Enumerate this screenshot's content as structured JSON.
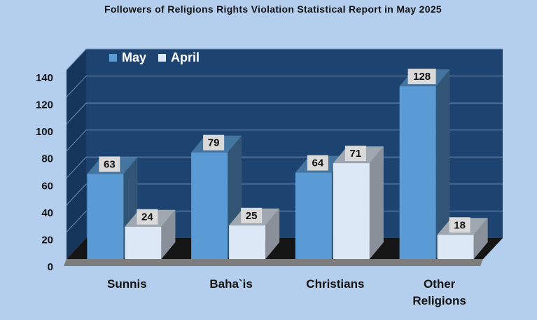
{
  "chart_data": {
    "type": "bar",
    "title": "Followers of Religions Rights Violation Statistical Report in May 2025",
    "categories": [
      "Sunnis",
      "Baha`is",
      "Christians",
      "Other Religions"
    ],
    "series": [
      {
        "name": "May",
        "values": [
          63,
          79,
          64,
          128
        ],
        "color": "#5b9bd5"
      },
      {
        "name": "April",
        "values": [
          24,
          25,
          71,
          18
        ],
        "color": "#dde8f6"
      }
    ],
    "yticks": [
      "0",
      "20",
      "40",
      "60",
      "80",
      "100",
      "120",
      "140"
    ],
    "ylim": [
      0,
      140
    ],
    "grid": true,
    "legend": "top-left",
    "colors": {
      "background": "#b4cfee",
      "back_wall": "#1d4471",
      "side_wall": "#16355a",
      "floor": "#7d7d7d",
      "gridline": "#6f8fb5"
    }
  }
}
